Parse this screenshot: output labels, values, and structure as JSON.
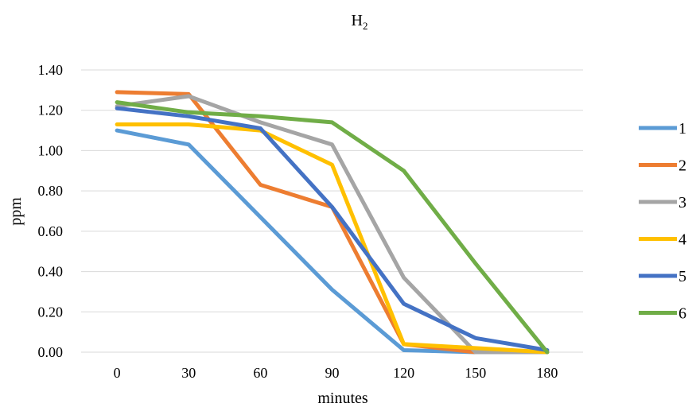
{
  "chart_data": {
    "type": "line",
    "title": "H",
    "title_subscript": "2",
    "xlabel": "minutes",
    "ylabel": "ppm",
    "x": [
      0,
      30,
      60,
      90,
      120,
      150,
      180
    ],
    "x_tick_labels": [
      "0",
      "30",
      "60",
      "90",
      "120",
      "150",
      "180"
    ],
    "ylim": [
      0,
      1.4
    ],
    "y_ticks": [
      0,
      0.2,
      0.4,
      0.6,
      0.8,
      1.0,
      1.2,
      1.4
    ],
    "y_tick_labels": [
      "0.00",
      "0.20",
      "0.40",
      "0.60",
      "0.80",
      "1.00",
      "1.20",
      "1.40"
    ],
    "grid": "horizontal",
    "legend_position": "right",
    "series": [
      {
        "name": "1",
        "color": "#5B9BD5",
        "values": [
          1.1,
          1.03,
          0.67,
          0.31,
          0.01,
          0.0,
          0.0
        ]
      },
      {
        "name": "2",
        "color": "#ED7D31",
        "values": [
          1.29,
          1.28,
          0.83,
          0.72,
          0.04,
          0.0,
          0.0
        ]
      },
      {
        "name": "3",
        "color": "#A5A5A5",
        "values": [
          1.22,
          1.27,
          1.14,
          1.03,
          0.37,
          0.0,
          0.0
        ]
      },
      {
        "name": "4",
        "color": "#FFC000",
        "values": [
          1.13,
          1.13,
          1.1,
          0.93,
          0.04,
          0.02,
          0.0
        ]
      },
      {
        "name": "5",
        "color": "#4472C4",
        "values": [
          1.21,
          1.17,
          1.11,
          0.72,
          0.24,
          0.07,
          0.01
        ]
      },
      {
        "name": "6",
        "color": "#70AD47",
        "values": [
          1.24,
          1.19,
          1.17,
          1.14,
          0.9,
          0.44,
          0.0
        ]
      }
    ]
  }
}
